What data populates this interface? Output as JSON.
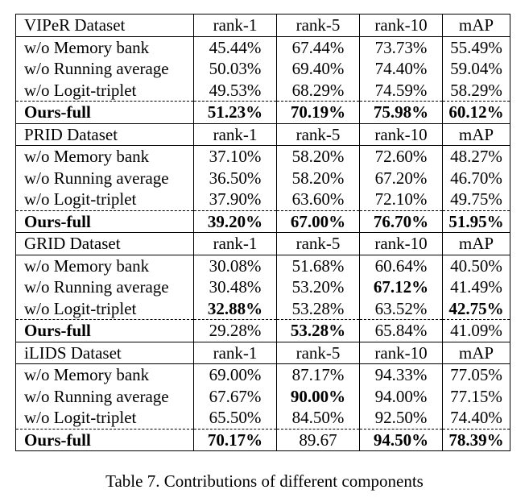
{
  "caption": "Table 7. Contributions of different components",
  "sections": [
    {
      "header": [
        "VIPeR Dataset",
        "rank-1",
        "rank-5",
        "rank-10",
        "mAP"
      ],
      "rows": [
        {
          "cells": [
            "w/o Memory bank",
            "45.44%",
            "67.44%",
            "73.73%",
            "55.49%"
          ],
          "bold": [
            false,
            false,
            false,
            false,
            false
          ]
        },
        {
          "cells": [
            "w/o Running average",
            "50.03%",
            "69.40%",
            "74.40%",
            "59.04%"
          ],
          "bold": [
            false,
            false,
            false,
            false,
            false
          ]
        },
        {
          "cells": [
            "w/o Logit-triplet",
            "49.53%",
            "68.29%",
            "74.59%",
            "58.29%"
          ],
          "bold": [
            false,
            false,
            false,
            false,
            false
          ]
        }
      ],
      "full": {
        "cells": [
          "Ours-full",
          "51.23%",
          "70.19%",
          "75.98%",
          "60.12%"
        ],
        "bold": [
          true,
          true,
          true,
          true,
          true
        ]
      }
    },
    {
      "header": [
        "PRID Dataset",
        "rank-1",
        "rank-5",
        "rank-10",
        "mAP"
      ],
      "rows": [
        {
          "cells": [
            "w/o Memory bank",
            "37.10%",
            "58.20%",
            "72.60%",
            "48.27%"
          ],
          "bold": [
            false,
            false,
            false,
            false,
            false
          ]
        },
        {
          "cells": [
            "w/o Running average",
            "36.50%",
            "58.20%",
            "67.20%",
            "46.70%"
          ],
          "bold": [
            false,
            false,
            false,
            false,
            false
          ]
        },
        {
          "cells": [
            "w/o Logit-triplet",
            "37.90%",
            "63.60%",
            "72.10%",
            "49.75%"
          ],
          "bold": [
            false,
            false,
            false,
            false,
            false
          ]
        }
      ],
      "full": {
        "cells": [
          "Ours-full",
          "39.20%",
          "67.00%",
          "76.70%",
          "51.95%"
        ],
        "bold": [
          true,
          true,
          true,
          true,
          true
        ]
      }
    },
    {
      "header": [
        "GRID Dataset",
        "rank-1",
        "rank-5",
        "rank-10",
        "mAP"
      ],
      "rows": [
        {
          "cells": [
            "w/o Memory bank",
            "30.08%",
            "51.68%",
            "60.64%",
            "40.50%"
          ],
          "bold": [
            false,
            false,
            false,
            false,
            false
          ]
        },
        {
          "cells": [
            "w/o Running average",
            "30.48%",
            "53.20%",
            "67.12%",
            "41.49%"
          ],
          "bold": [
            false,
            false,
            false,
            true,
            false
          ]
        },
        {
          "cells": [
            "w/o Logit-triplet",
            "32.88%",
            "53.28%",
            "63.52%",
            "42.75%"
          ],
          "bold": [
            false,
            true,
            false,
            false,
            true
          ]
        }
      ],
      "full": {
        "cells": [
          "Ours-full",
          "29.28%",
          "53.28%",
          "65.84%",
          "41.09%"
        ],
        "bold": [
          true,
          false,
          true,
          false,
          false
        ]
      }
    },
    {
      "header": [
        "iLIDS Dataset",
        "rank-1",
        "rank-5",
        "rank-10",
        "mAP"
      ],
      "rows": [
        {
          "cells": [
            "w/o Memory bank",
            "69.00%",
            "87.17%",
            "94.33%",
            "77.05%"
          ],
          "bold": [
            false,
            false,
            false,
            false,
            false
          ]
        },
        {
          "cells": [
            "w/o Running average",
            "67.67%",
            "90.00%",
            "94.00%",
            "77.15%"
          ],
          "bold": [
            false,
            false,
            true,
            false,
            false
          ]
        },
        {
          "cells": [
            "w/o Logit-triplet",
            "65.50%",
            "84.50%",
            "92.50%",
            "74.40%"
          ],
          "bold": [
            false,
            false,
            false,
            false,
            false
          ]
        }
      ],
      "full": {
        "cells": [
          "Ours-full",
          "70.17%",
          "89.67",
          "94.50%",
          "78.39%"
        ],
        "bold": [
          true,
          true,
          false,
          true,
          true
        ]
      }
    }
  ]
}
